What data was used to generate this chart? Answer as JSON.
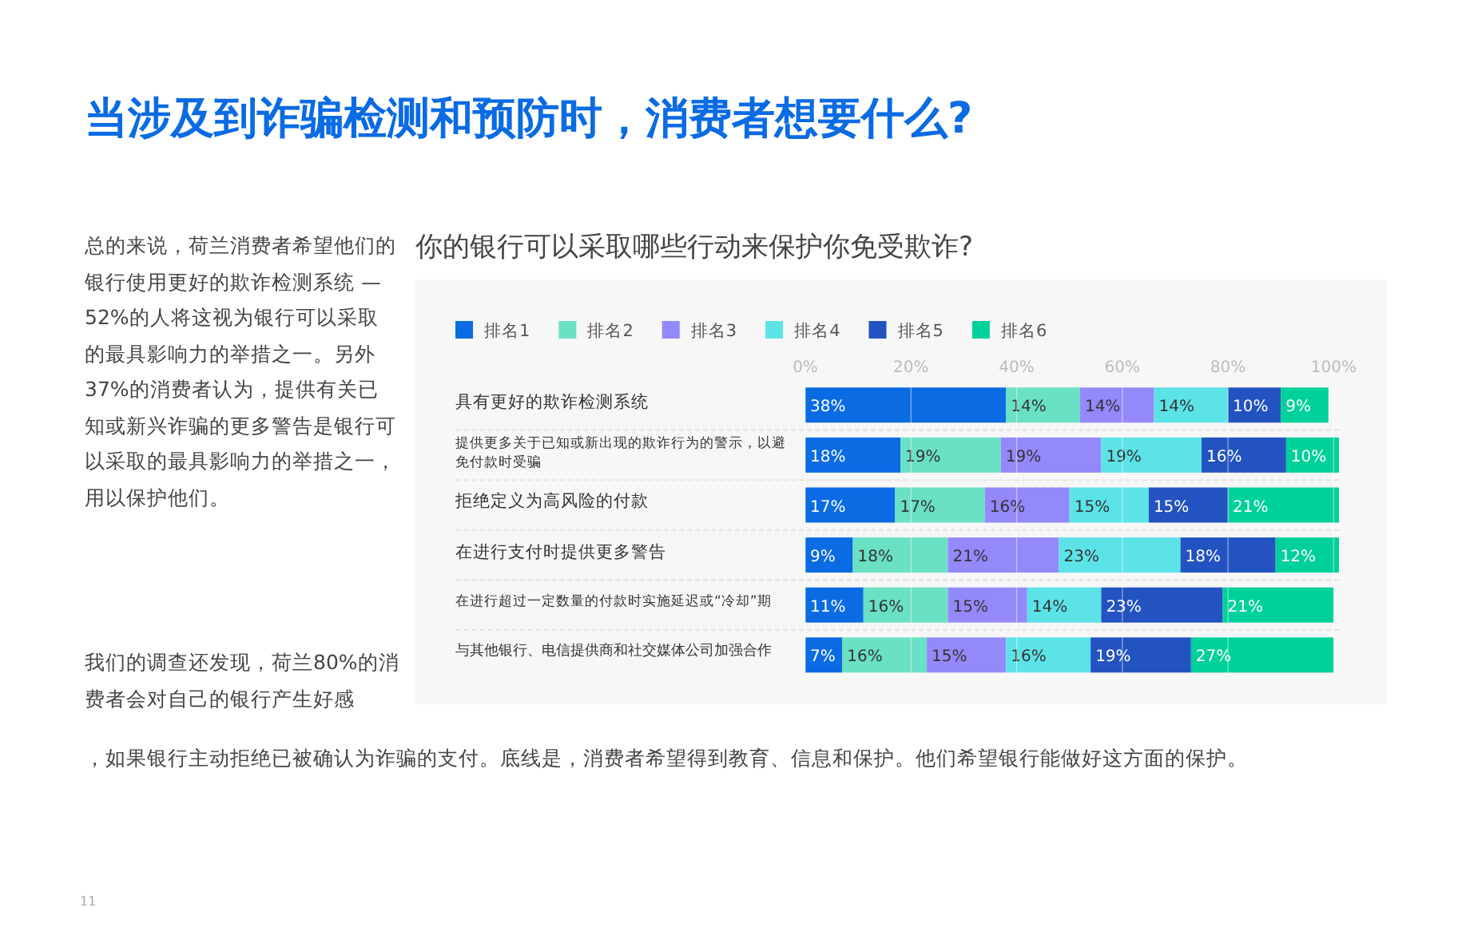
{
  "chart_data": {
    "type": "bar",
    "orientation": "horizontal",
    "stacked": true,
    "title": "当涉及到诈骗检测和预防时，消费者想要什么?",
    "subtitle": "你的银行可以采取哪些行动来保护你免受欺诈?",
    "categories": [
      "具有更好的欺诈检测系统",
      "提供更多关于已知或新出现的欺诈行为的警示，以避免付款时受骗",
      "拒绝定义为高风险的付款",
      "在进行支付时提供更多警告",
      "在进行超过一定数量的付款时实施延迟或“冷却”期",
      "与其他银行、电信提供商和社交媒体公司加强合作"
    ],
    "series": [
      {
        "name": "排名1",
        "color": "#0b6be3",
        "values": [
          38,
          18,
          17,
          9,
          11,
          7
        ],
        "value_labels": [
          "38%",
          "18%",
          "17%",
          "9%",
          "11%",
          "7%"
        ]
      },
      {
        "name": "排名2",
        "color": "#6ae0c4",
        "values": [
          14,
          19,
          17,
          18,
          16,
          16
        ],
        "value_labels": [
          "14%",
          "19%",
          "17%",
          "18%",
          "16%",
          "16%"
        ]
      },
      {
        "name": "排名3",
        "color": "#9489fa",
        "values": [
          14,
          19,
          16,
          21,
          15,
          15
        ],
        "value_labels": [
          "14%",
          "19%",
          "16%",
          "21%",
          "15%",
          "15%"
        ]
      },
      {
        "name": "排名4",
        "color": "#5ce3e8",
        "values": [
          14,
          19,
          15,
          23,
          14,
          16
        ],
        "value_labels": [
          "14%",
          "19%",
          "15%",
          "23%",
          "14%",
          "16%"
        ]
      },
      {
        "name": "排名5",
        "color": "#2353c0",
        "values": [
          10,
          16,
          15,
          18,
          23,
          19
        ],
        "value_labels": [
          "10%",
          "16%",
          "15%",
          "18%",
          "23%",
          "19%"
        ]
      },
      {
        "name": "排名6",
        "color": "#00d09a",
        "values": [
          9,
          10,
          21,
          12,
          21,
          27
        ],
        "value_labels": [
          "9%",
          "10%",
          "21%",
          "12%",
          "21%",
          "27%"
        ]
      }
    ],
    "xlim": [
      0,
      101
    ],
    "xticks": [
      {
        "value": 0,
        "label": "0%"
      },
      {
        "value": 20,
        "label": "20%"
      },
      {
        "value": 40,
        "label": "40%"
      },
      {
        "value": 60,
        "label": "60%"
      },
      {
        "value": 80,
        "label": "80%"
      },
      {
        "value": 100,
        "label": "100%"
      }
    ],
    "grid": "x",
    "legend": "top left",
    "annotations": [
      "总的来说，荷兰消费者希望他们的银行使用更好的欺诈检测系统 — 52%的人将这视为银行可以采取的最具影响力的举措之一。另外37%的消费者认为，提供有关已知或新兴诈骗的更多警告是银行可以采取的最具影响力的举措之一，用以保护他们。",
      "我们的调查还发现，荷兰80%的消费者会对自己的银行产生好感",
      "，如果银行主动拒绝已被确认为诈骗的支付。底线是，消费者希望得到教育、信息和保护。他们希望银行能做好这方面的保护。",
      "11"
    ]
  }
}
